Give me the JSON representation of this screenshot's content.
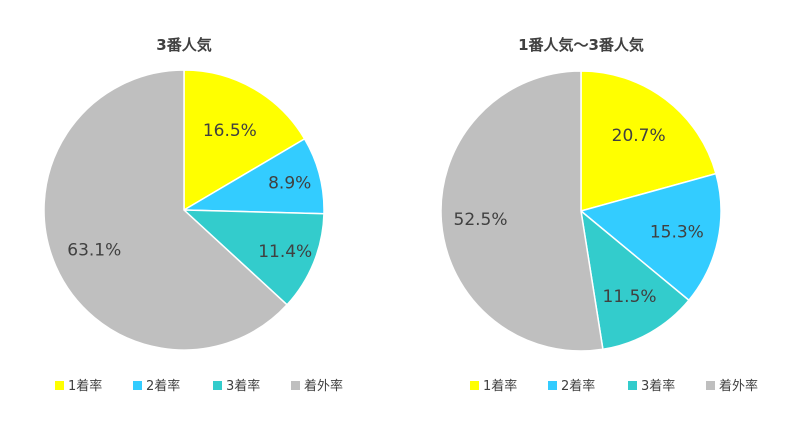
{
  "chart_data": [
    {
      "type": "pie",
      "title": "3番人気",
      "categories": [
        "1着率",
        "2着率",
        "3着率",
        "着外率"
      ],
      "values": [
        16.5,
        8.9,
        11.4,
        63.1
      ],
      "labels": [
        "16.5%",
        "8.9%",
        "11.4%",
        "63.1%"
      ],
      "colors": [
        "#FFFF00",
        "#33CCFF",
        "#33CCCC",
        "#BFBFBF"
      ],
      "legend": "bottom"
    },
    {
      "type": "pie",
      "title": "1番人気～3番人気",
      "categories": [
        "1着率",
        "2着率",
        "3着率",
        "着外率"
      ],
      "values": [
        20.7,
        15.3,
        11.5,
        52.5
      ],
      "labels": [
        "20.7%",
        "15.3%",
        "11.5%",
        "52.5%"
      ],
      "colors": [
        "#FFFF00",
        "#33CCFF",
        "#33CCCC",
        "#BFBFBF"
      ],
      "legend": "bottom"
    }
  ]
}
